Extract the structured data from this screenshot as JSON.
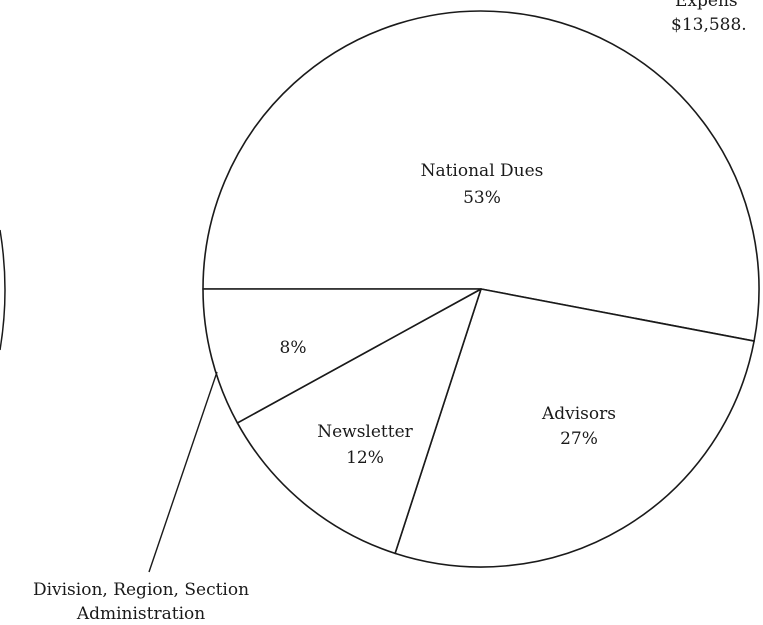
{
  "chart_data": {
    "type": "pie",
    "title": "",
    "corner_label_line1": "Expens",
    "corner_label_line2": "$13,588.",
    "slices": [
      {
        "name": "National Dues",
        "label": "National Dues",
        "value_text": "53%",
        "value": 53
      },
      {
        "name": "Advisors",
        "label": "Advisors",
        "value_text": "27%",
        "value": 27
      },
      {
        "name": "Newsletter",
        "label": "Newsletter",
        "value_text": "12%",
        "value": 12
      },
      {
        "name": "Division, Region, Section Administration",
        "label": "",
        "value_text": "8%",
        "value": 8
      }
    ],
    "callout": {
      "line1": "Division, Region, Section",
      "line2": "Administration"
    },
    "stroke_color": "#1a1a1a",
    "fill_color": "#ffffff"
  }
}
